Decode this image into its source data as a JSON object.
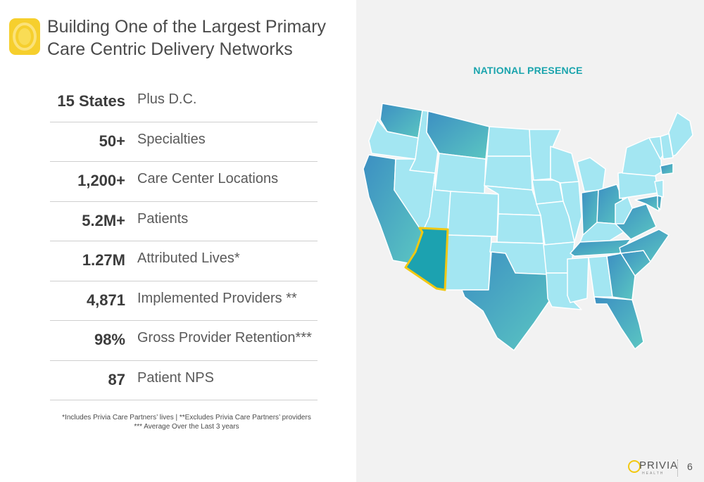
{
  "slide": {
    "title": "Building One of the Largest Primary Care Centric Delivery Networks",
    "page_number": "6"
  },
  "stats": [
    {
      "value": "15 States",
      "label": "Plus D.C."
    },
    {
      "value": "50+",
      "label": "Specialties"
    },
    {
      "value": "1,200+",
      "label": "Care Center Locations"
    },
    {
      "value": "5.2M+",
      "label": "Patients"
    },
    {
      "value": "1.27M",
      "label": "Attributed Lives*"
    },
    {
      "value": "4,871",
      "label": "Implemented Providers **"
    },
    {
      "value": "98%",
      "label": "Gross Provider Retention***"
    },
    {
      "value": "87",
      "label": "Patient NPS"
    }
  ],
  "footnotes": {
    "line1": "*Includes Privia Care Partners’ lives  |  **Excludes Privia Care Partners’ providers",
    "line2": "*** Average Over the Last 3 years"
  },
  "map": {
    "title": "NATIONAL PRESENCE",
    "colors": {
      "base": "#a3e6f2",
      "presence": "#3aa6b9",
      "highlight_fill": "#1ca2b0",
      "highlight_border": "#f2c811",
      "border": "#ffffff"
    },
    "presence_states": [
      "Washington",
      "Montana",
      "California",
      "Arizona",
      "Texas",
      "Indiana",
      "Ohio",
      "Tennessee",
      "Georgia",
      "Florida",
      "South Carolina",
      "North Carolina",
      "Virginia",
      "Maryland",
      "Delaware",
      "Connecticut"
    ],
    "highlighted_state": "Arizona"
  },
  "brand": {
    "name": "PRIVIA",
    "subtitle": "HEALTH"
  }
}
